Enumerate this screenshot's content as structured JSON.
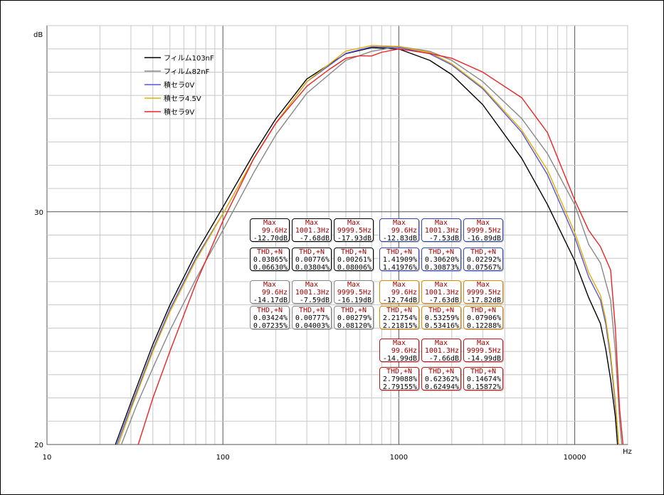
{
  "chart_data": {
    "type": "line",
    "title": "",
    "xlabel": "Hz",
    "ylabel": "dB",
    "xscale": "log",
    "xlim": [
      10,
      20000
    ],
    "ylim": [
      20,
      38
    ],
    "xticks": [
      10,
      100,
      1000,
      10000
    ],
    "xtick_labels": [
      "10",
      "100",
      "1000",
      "10000"
    ],
    "yticks": [
      20,
      30
    ],
    "ytick_labels": [
      "20",
      "30"
    ],
    "legend_position": "top-left",
    "series": [
      {
        "name": "フィルム103nF",
        "color": "#000000",
        "x": [
          24.5,
          30,
          40,
          50,
          70,
          100,
          150,
          200,
          300,
          500,
          700,
          1000,
          1500,
          2000,
          3000,
          5000,
          7000,
          10000,
          12000,
          14000,
          15000,
          16000,
          17000,
          17500
        ],
        "y": [
          20,
          21.8,
          24.3,
          26.0,
          28.2,
          30.2,
          32.5,
          34.0,
          35.7,
          36.8,
          37.05,
          37.0,
          36.5,
          35.9,
          34.6,
          32.3,
          30.3,
          27.9,
          26.3,
          25.2,
          24.1,
          22.8,
          21.2,
          20
        ]
      },
      {
        "name": "フィルム82nF",
        "color": "#888888",
        "x": [
          26.5,
          32,
          40,
          50,
          70,
          100,
          150,
          200,
          300,
          500,
          700,
          1000,
          1500,
          2000,
          3000,
          5000,
          7000,
          10000,
          12000,
          14000,
          16000,
          17000,
          18000,
          18500
        ],
        "y": [
          20,
          21.6,
          23.3,
          24.9,
          27.1,
          29.2,
          31.7,
          33.3,
          35.1,
          36.5,
          36.9,
          37.1,
          36.9,
          36.5,
          35.6,
          34.0,
          32.5,
          30.3,
          28.6,
          27.8,
          26.2,
          24.0,
          21.0,
          20
        ]
      },
      {
        "name": "積セラ0V",
        "color": "#5555dd",
        "x": [
          25,
          30,
          40,
          50,
          70,
          100,
          150,
          200,
          300,
          500,
          700,
          1000,
          1500,
          2000,
          3000,
          5000,
          7000,
          10000,
          12000,
          14000,
          15000,
          16000,
          17000,
          17800
        ],
        "y": [
          20,
          21.6,
          24.1,
          25.8,
          28.0,
          29.9,
          32.3,
          33.8,
          35.6,
          36.8,
          37.1,
          37.05,
          36.8,
          36.3,
          35.3,
          33.4,
          31.6,
          28.9,
          27.2,
          26.2,
          25.2,
          23.7,
          21.7,
          20
        ]
      },
      {
        "name": "積セラ4.5V",
        "color": "#e0b000",
        "x": [
          25.5,
          30,
          40,
          50,
          70,
          100,
          150,
          200,
          300,
          500,
          700,
          1000,
          1500,
          2000,
          3000,
          5000,
          7000,
          10000,
          12000,
          14000,
          15000,
          16000,
          17000,
          17800
        ],
        "y": [
          20,
          21.5,
          24.0,
          25.7,
          27.9,
          29.9,
          32.3,
          33.8,
          35.6,
          36.9,
          37.15,
          37.1,
          36.85,
          36.35,
          35.35,
          33.5,
          31.8,
          29.1,
          27.4,
          26.4,
          25.4,
          23.9,
          21.9,
          20
        ]
      },
      {
        "name": "積セラ9V",
        "color": "#ee2222",
        "x": [
          33,
          40,
          50,
          70,
          100,
          150,
          200,
          300,
          400,
          500,
          600,
          700,
          800,
          1000,
          1500,
          2000,
          3000,
          5000,
          7000,
          10000,
          12000,
          14000,
          16000,
          17000,
          18000,
          18800
        ],
        "y": [
          20,
          22.0,
          24.0,
          26.9,
          29.6,
          32.3,
          33.8,
          35.4,
          36.1,
          36.6,
          36.7,
          36.7,
          36.85,
          37.0,
          36.8,
          36.6,
          36.0,
          34.9,
          33.4,
          30.5,
          29.2,
          28.5,
          27.5,
          25.0,
          21.5,
          20
        ]
      }
    ]
  },
  "measurement_boxes": [
    {
      "row": 0,
      "col": 0,
      "color": "#000000",
      "kind": "max",
      "header": "Max",
      "line1": "99.6Hz",
      "line2": "-12.70dB"
    },
    {
      "row": 0,
      "col": 1,
      "color": "#000000",
      "kind": "max",
      "header": "Max",
      "line1": "1001.3Hz",
      "line2": "-7.68dB"
    },
    {
      "row": 0,
      "col": 2,
      "color": "#000000",
      "kind": "max",
      "header": "Max",
      "line1": "9999.5Hz",
      "line2": "-17.93dB"
    },
    {
      "row": 0,
      "col": 3,
      "color": "#3344bb",
      "kind": "max",
      "header": "Max",
      "line1": "99.6Hz",
      "line2": "-12.83dB"
    },
    {
      "row": 0,
      "col": 4,
      "color": "#3344bb",
      "kind": "max",
      "header": "Max",
      "line1": "1001.3Hz",
      "line2": "-7.53dB"
    },
    {
      "row": 0,
      "col": 5,
      "color": "#3344bb",
      "kind": "max",
      "header": "Max",
      "line1": "9999.5Hz",
      "line2": "-16.89dB"
    },
    {
      "row": 1,
      "col": 0,
      "color": "#000000",
      "kind": "thd",
      "header": "THD,+N",
      "line1": "0.03865%",
      "line2": "0.06630%"
    },
    {
      "row": 1,
      "col": 1,
      "color": "#000000",
      "kind": "thd",
      "header": "THD,+N",
      "line1": "0.00776%",
      "line2": "0.03804%"
    },
    {
      "row": 1,
      "col": 2,
      "color": "#000000",
      "kind": "thd",
      "header": "THD,+N",
      "line1": "0.00261%",
      "line2": "0.08006%"
    },
    {
      "row": 1,
      "col": 3,
      "color": "#3344bb",
      "kind": "thd",
      "header": "THD,+N",
      "line1": "1.41909%",
      "line2": "1.41976%"
    },
    {
      "row": 1,
      "col": 4,
      "color": "#3344bb",
      "kind": "thd",
      "header": "THD,+N",
      "line1": "0.30620%",
      "line2": "0.30873%"
    },
    {
      "row": 1,
      "col": 5,
      "color": "#3344bb",
      "kind": "thd",
      "header": "THD,+N",
      "line1": "0.02292%",
      "line2": "0.07567%"
    },
    {
      "row": 2,
      "col": 0,
      "color": "#888888",
      "kind": "max",
      "header": "Max",
      "line1": "99.6Hz",
      "line2": "-14.17dB"
    },
    {
      "row": 2,
      "col": 1,
      "color": "#888888",
      "kind": "max",
      "header": "Max",
      "line1": "1001.3Hz",
      "line2": "-7.59dB"
    },
    {
      "row": 2,
      "col": 2,
      "color": "#888888",
      "kind": "max",
      "header": "Max",
      "line1": "9999.5Hz",
      "line2": "-16.19dB"
    },
    {
      "row": 2,
      "col": 3,
      "color": "#dd8800",
      "kind": "max",
      "header": "Max",
      "line1": "99.6Hz",
      "line2": "-12.74dB"
    },
    {
      "row": 2,
      "col": 4,
      "color": "#dd8800",
      "kind": "max",
      "header": "Max",
      "line1": "1001.3Hz",
      "line2": "-7.63dB"
    },
    {
      "row": 2,
      "col": 5,
      "color": "#dd8800",
      "kind": "max",
      "header": "Max",
      "line1": "9999.5Hz",
      "line2": "-17.82dB"
    },
    {
      "row": 3,
      "col": 0,
      "color": "#888888",
      "kind": "thd",
      "header": "THD,+N",
      "line1": "0.03424%",
      "line2": "0.07235%"
    },
    {
      "row": 3,
      "col": 1,
      "color": "#888888",
      "kind": "thd",
      "header": "THD,+N",
      "line1": "0.00777%",
      "line2": "0.04003%"
    },
    {
      "row": 3,
      "col": 2,
      "color": "#888888",
      "kind": "thd",
      "header": "THD,+N",
      "line1": "0.00279%",
      "line2": "0.08120%"
    },
    {
      "row": 3,
      "col": 3,
      "color": "#dd8800",
      "kind": "thd",
      "header": "THD,+N",
      "line1": "2.21754%",
      "line2": "2.21815%"
    },
    {
      "row": 3,
      "col": 4,
      "color": "#dd8800",
      "kind": "thd",
      "header": "THD,+N",
      "line1": "0.53259%",
      "line2": "0.53416%"
    },
    {
      "row": 3,
      "col": 5,
      "color": "#dd8800",
      "kind": "thd",
      "header": "THD,+N",
      "line1": "0.07906%",
      "line2": "0.12288%"
    },
    {
      "row": 4,
      "col": 3,
      "color": "#cc1111",
      "kind": "max",
      "header": "Max",
      "line1": "99.6Hz",
      "line2": "-14.99dB"
    },
    {
      "row": 4,
      "col": 4,
      "color": "#cc1111",
      "kind": "max",
      "header": "Max",
      "line1": "1001.3Hz",
      "line2": "-7.66dB"
    },
    {
      "row": 4,
      "col": 5,
      "color": "#cc1111",
      "kind": "max",
      "header": "Max",
      "line1": "9999.5Hz",
      "line2": "-14.99dB"
    },
    {
      "row": 5,
      "col": 3,
      "color": "#cc1111",
      "kind": "thd",
      "header": "THD,+N",
      "line1": "2.79088%",
      "line2": "2.79155%"
    },
    {
      "row": 5,
      "col": 4,
      "color": "#cc1111",
      "kind": "thd",
      "header": "THD,+N",
      "line1": "0.62362%",
      "line2": "0.62494%"
    },
    {
      "row": 5,
      "col": 5,
      "color": "#cc1111",
      "kind": "thd",
      "header": "THD,+N",
      "line1": "0.14674%",
      "line2": "0.15872%"
    }
  ]
}
